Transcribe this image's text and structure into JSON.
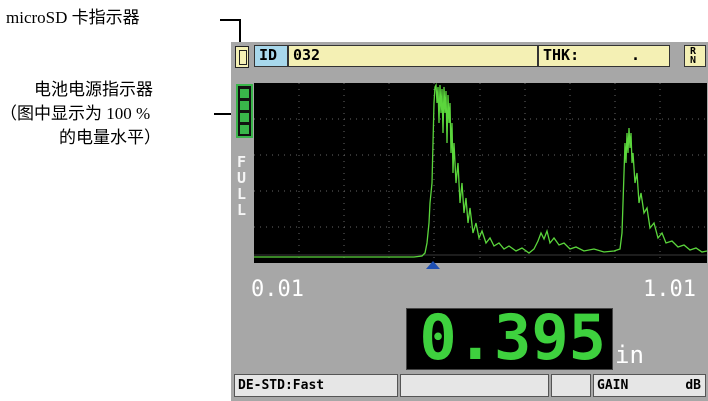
{
  "callouts": {
    "sd_label": "microSD 卡指示器",
    "battery_line1": "电池电源指示器",
    "battery_line2": "（图中显示为 100 %",
    "battery_line3": "的电量水平）"
  },
  "header": {
    "id_label": "ID",
    "id_value": "032",
    "thk_label": "THK:",
    "thk_value": ".",
    "range_mode": "R N"
  },
  "battery": {
    "level_text": "FULL",
    "level_percent": 100,
    "color": "#39b54a"
  },
  "scale": {
    "left": "0.01",
    "right": "1.01"
  },
  "reading": {
    "value": "0.395",
    "unit": "in",
    "color": "#3ed13e"
  },
  "status": {
    "mode": "DE-STD:Fast",
    "gain_label": "GAIN",
    "gain_unit": "dB"
  }
}
